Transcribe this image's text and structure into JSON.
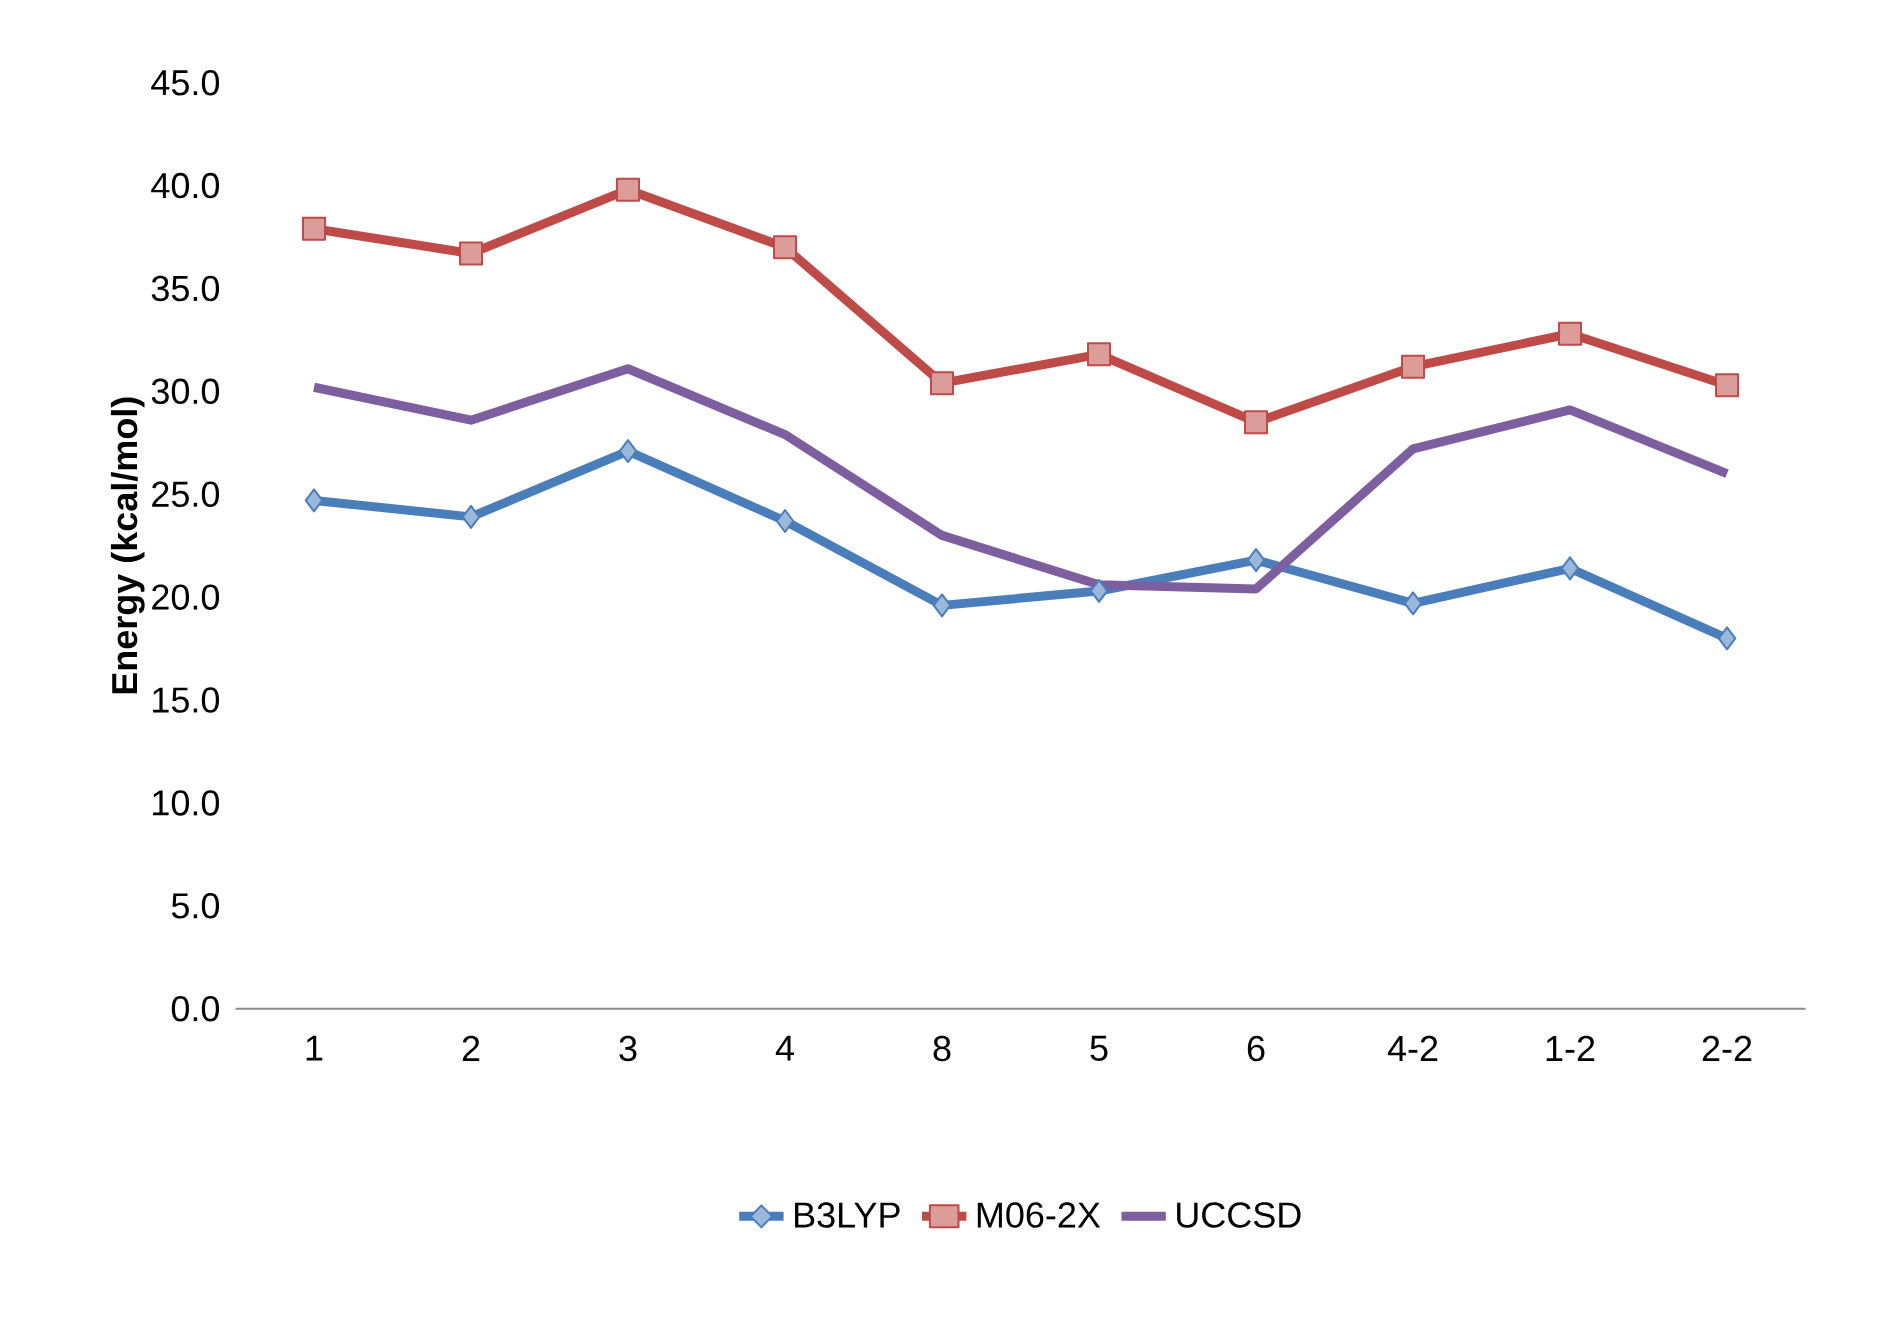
{
  "chart_data": {
    "type": "line",
    "ylabel": "Energy (kcal/mol)",
    "categories": [
      "1",
      "2",
      "3",
      "4",
      "8",
      "5",
      "6",
      "4-2",
      "1-2",
      "2-2"
    ],
    "series": [
      {
        "name": "B3LYP",
        "color": "#4a7ebb",
        "marker": "diamond",
        "values": [
          24.7,
          23.9,
          27.1,
          23.7,
          19.6,
          20.3,
          21.8,
          19.7,
          21.4,
          18.0
        ]
      },
      {
        "name": "M06-2X",
        "color": "#be4b48",
        "marker": "square",
        "values": [
          37.9,
          36.7,
          39.8,
          37.0,
          30.4,
          31.8,
          28.5,
          31.2,
          32.8,
          30.3
        ]
      },
      {
        "name": "UCCSD",
        "color": "#7d5fa0",
        "marker": "none",
        "values": [
          30.2,
          28.6,
          31.1,
          27.9,
          23.0,
          20.6,
          20.4,
          27.2,
          29.1,
          26.0
        ]
      }
    ],
    "ylim": [
      0,
      45
    ],
    "yticks": [
      {
        "value": 0,
        "label": "0.0"
      },
      {
        "value": 5,
        "label": "5.0"
      },
      {
        "value": 10,
        "label": "10.0"
      },
      {
        "value": 15,
        "label": "15.0"
      },
      {
        "value": 20,
        "label": "20.0"
      },
      {
        "value": 25,
        "label": "25.0"
      },
      {
        "value": 30,
        "label": "30.0"
      },
      {
        "value": 35,
        "label": "35.0"
      },
      {
        "value": 40,
        "label": "40.0"
      },
      {
        "value": 45,
        "label": "45.0"
      }
    ],
    "grid": false,
    "legend": "bottom"
  }
}
